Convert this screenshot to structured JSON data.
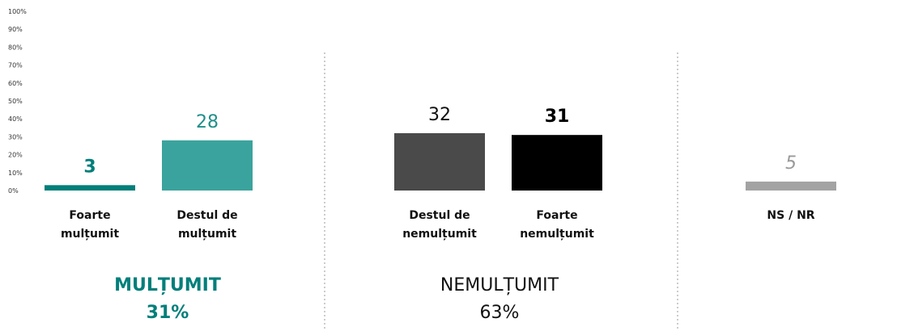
{
  "chart_data": {
    "type": "bar",
    "categories": [
      "Foarte mulțumit",
      "Destul de mulțumit",
      "Destul de nemulțumit",
      "Foarte nemulțumit",
      "NS / NR"
    ],
    "values": [
      3,
      28,
      32,
      31,
      5
    ],
    "colors": [
      "#007f7a",
      "#3ba39d",
      "#4a4a4a",
      "#000000",
      "#a3a3a3"
    ],
    "ylim": [
      0,
      100
    ],
    "yticks": [
      {
        "value": 0,
        "label": "0%"
      },
      {
        "value": 10,
        "label": "10%"
      },
      {
        "value": 20,
        "label": "20%"
      },
      {
        "value": 30,
        "label": "30%"
      },
      {
        "value": 40,
        "label": "40%"
      },
      {
        "value": 50,
        "label": "50%"
      },
      {
        "value": 60,
        "label": "60%"
      },
      {
        "value": 70,
        "label": "70%"
      },
      {
        "value": 80,
        "label": "80%"
      },
      {
        "value": 90,
        "label": "90%"
      },
      {
        "value": 100,
        "label": "100%"
      }
    ],
    "groups": [
      {
        "name": "MULȚUMIT",
        "value": 31,
        "value_label": "31%"
      },
      {
        "name": "NEMULȚUMIT",
        "value": 63,
        "value_label": "63%"
      }
    ]
  }
}
